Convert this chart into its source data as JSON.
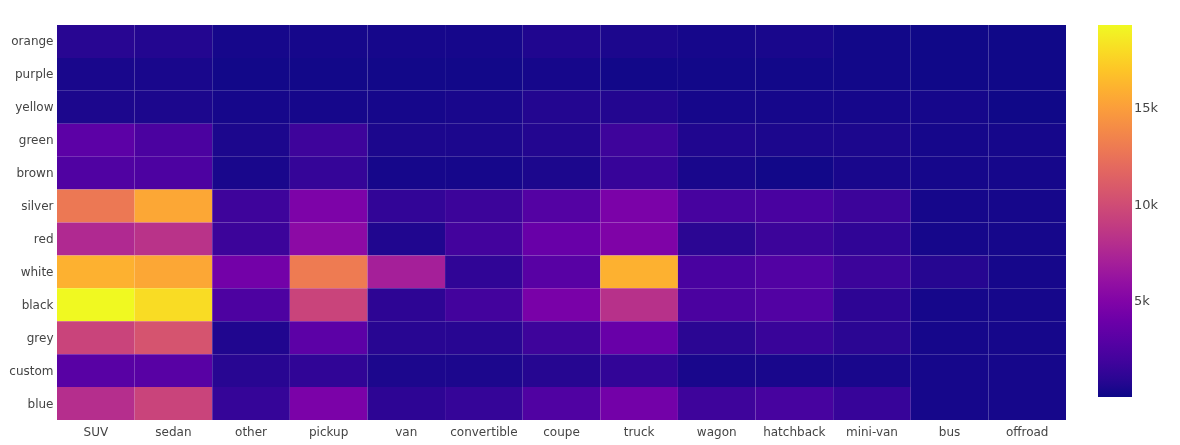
{
  "chart_data": {
    "type": "heatmap",
    "categories": [
      "SUV",
      "sedan",
      "other",
      "pickup",
      "van",
      "convertible",
      "coupe",
      "truck",
      "wagon",
      "hatchback",
      "mini-van",
      "bus",
      "offroad"
    ],
    "y_categories": [
      "orange",
      "purple",
      "yellow",
      "green",
      "brown",
      "silver",
      "red",
      "white",
      "black",
      "grey",
      "custom",
      "blue"
    ],
    "cells": [
      [
        900,
        700,
        300,
        300,
        300,
        300,
        600,
        500,
        300,
        400,
        200,
        150,
        150
      ],
      [
        400,
        400,
        200,
        200,
        200,
        200,
        300,
        200,
        200,
        200,
        200,
        150,
        150
      ],
      [
        500,
        500,
        300,
        300,
        300,
        400,
        700,
        700,
        300,
        300,
        300,
        300,
        150
      ],
      [
        3200,
        2400,
        500,
        1800,
        500,
        500,
        700,
        1800,
        600,
        500,
        500,
        300,
        300
      ],
      [
        2600,
        2500,
        400,
        1400,
        300,
        300,
        500,
        1500,
        400,
        200,
        400,
        300,
        300
      ],
      [
        12800,
        15500,
        1800,
        4800,
        1300,
        1700,
        2800,
        4700,
        2200,
        2300,
        1700,
        300,
        300
      ],
      [
        7700,
        8300,
        1700,
        5600,
        600,
        2000,
        3800,
        4900,
        1000,
        1700,
        1200,
        300,
        300
      ],
      [
        16000,
        15500,
        4300,
        13000,
        7000,
        1200,
        3000,
        16000,
        2300,
        2700,
        1700,
        800,
        300
      ],
      [
        19300,
        18000,
        2500,
        9500,
        1100,
        2000,
        4600,
        8200,
        2400,
        2700,
        1100,
        300,
        300
      ],
      [
        9500,
        10500,
        600,
        3200,
        900,
        900,
        1800,
        3800,
        1000,
        1600,
        1000,
        300,
        300
      ],
      [
        3000,
        3000,
        900,
        1200,
        500,
        500,
        800,
        1300,
        400,
        400,
        400,
        300,
        300
      ],
      [
        8000,
        9500,
        1400,
        4700,
        1100,
        1400,
        2600,
        4300,
        1800,
        2200,
        1500,
        300,
        300
      ]
    ],
    "clim": [
      50,
      19300
    ],
    "cticks": [
      {
        "value": 5000,
        "label": "5k"
      },
      {
        "value": 10000,
        "label": "10k"
      },
      {
        "value": 15000,
        "label": "15k"
      }
    ]
  }
}
